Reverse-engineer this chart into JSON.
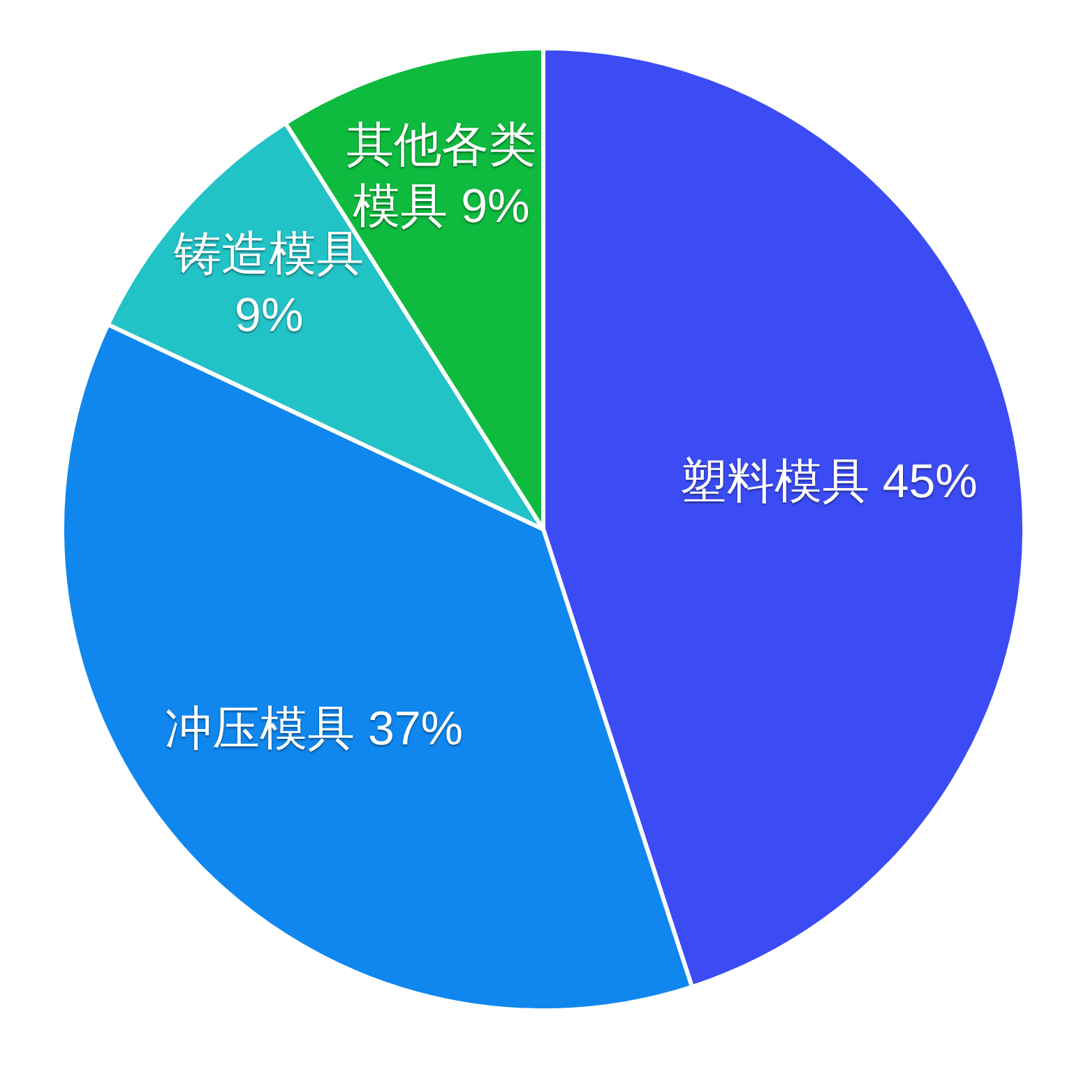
{
  "chart_data": {
    "type": "pie",
    "categories": [
      "塑料模具",
      "冲压模具",
      "铸造模具",
      "其他各类模具"
    ],
    "values": [
      45,
      37,
      9,
      9
    ],
    "colors": [
      "#3b4cf5",
      "#0f87ee",
      "#22c3c6",
      "#0fbb3e"
    ],
    "value_labels": [
      "45%",
      "37%",
      "9%",
      "9%"
    ],
    "legend": false
  }
}
